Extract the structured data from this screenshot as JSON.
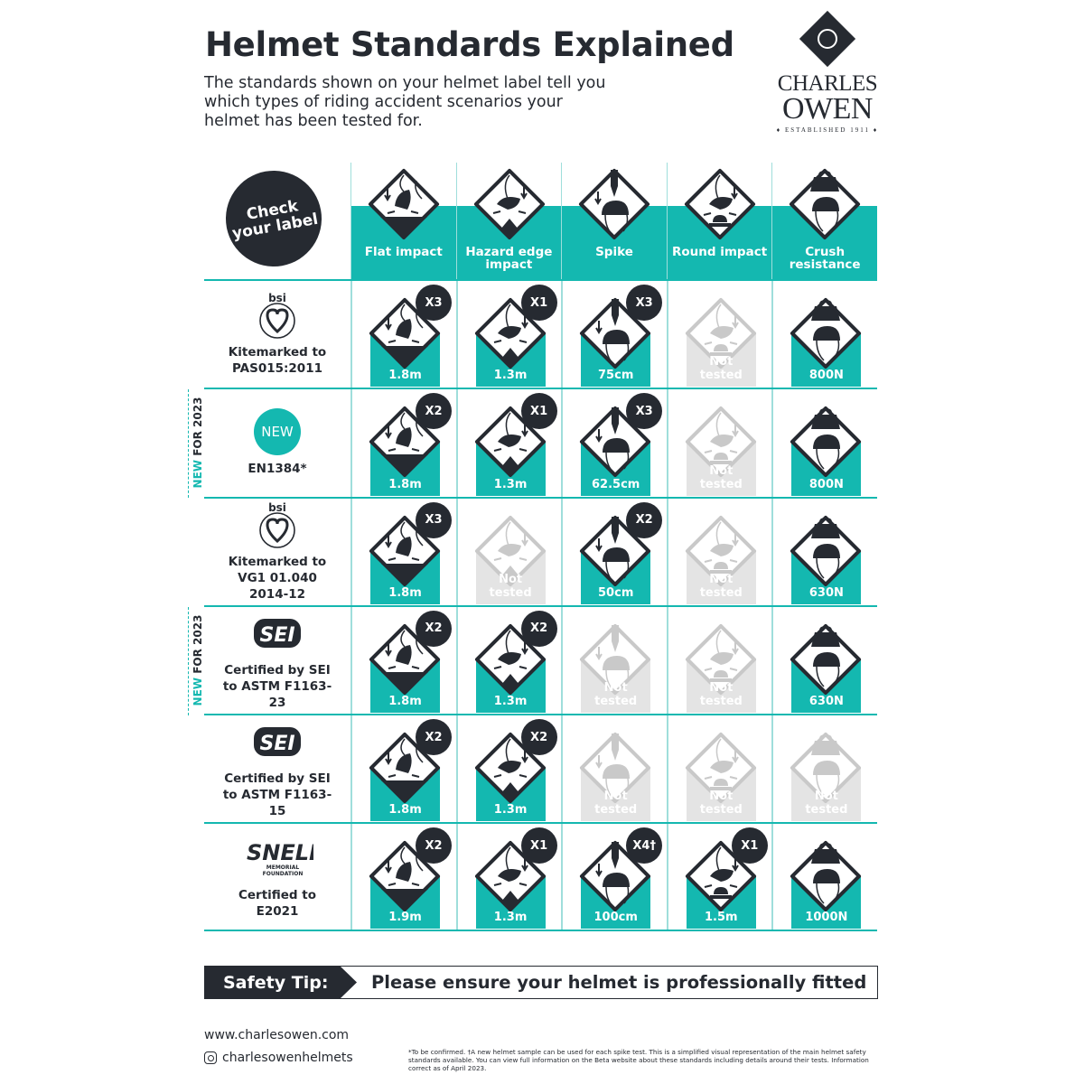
{
  "title": "Helmet Standards Explained",
  "subtitle": "The standards shown on your helmet label tell you which types of riding accident scenarios your helmet has been tested for.",
  "brand": {
    "line1": "CHARLES",
    "line2": "OWEN",
    "established": "♦ ESTABLISHED 1911 ♦"
  },
  "sticker": "Check your label",
  "colors": {
    "teal": "#14b8b0",
    "dark": "#262a31",
    "not_tested": "#e4e4e4"
  },
  "columns": [
    {
      "label": "Flat impact",
      "icon": "flat-impact-icon",
      "type": "flat"
    },
    {
      "label": "Hazard edge impact",
      "icon": "hazard-edge-impact-icon",
      "type": "hazard"
    },
    {
      "label": "Spike",
      "icon": "spike-icon",
      "type": "spike"
    },
    {
      "label": "Round impact",
      "icon": "round-impact-icon",
      "type": "round"
    },
    {
      "label": "Crush resistance",
      "icon": "crush-resistance-icon",
      "type": "crush"
    }
  ],
  "new_label": {
    "new": "NEW",
    "rest": " FOR 2023"
  },
  "rows": [
    {
      "logo": "bsi",
      "logo_text": "bsi",
      "label": "Kitemarked to PAS015:2011",
      "new": false,
      "cells": [
        {
          "value": "1.8m",
          "count": "X3"
        },
        {
          "value": "1.3m",
          "count": "X1"
        },
        {
          "value": "75cm",
          "count": "X3"
        },
        {
          "value": "Not tested",
          "tested": false
        },
        {
          "value": "800N"
        }
      ]
    },
    {
      "logo": "new",
      "logo_text": "NEW",
      "label": "EN1384*",
      "new": true,
      "cells": [
        {
          "value": "1.8m",
          "count": "X2"
        },
        {
          "value": "1.3m",
          "count": "X1"
        },
        {
          "value": "62.5cm",
          "count": "X3"
        },
        {
          "value": "Not tested",
          "tested": false
        },
        {
          "value": "800N"
        }
      ]
    },
    {
      "logo": "bsi",
      "logo_text": "bsi",
      "label": "Kitemarked to VG1 01.040 2014-12",
      "new": false,
      "cells": [
        {
          "value": "1.8m",
          "count": "X3"
        },
        {
          "value": "Not tested",
          "tested": false
        },
        {
          "value": "50cm",
          "count": "X2"
        },
        {
          "value": "Not tested",
          "tested": false
        },
        {
          "value": "630N"
        }
      ]
    },
    {
      "logo": "sei",
      "logo_text": "SEI",
      "label": "Certified by SEI to ASTM F1163-23",
      "new": true,
      "cells": [
        {
          "value": "1.8m",
          "count": "X2"
        },
        {
          "value": "1.3m",
          "count": "X2"
        },
        {
          "value": "Not tested",
          "tested": false
        },
        {
          "value": "Not tested",
          "tested": false
        },
        {
          "value": "630N"
        }
      ]
    },
    {
      "logo": "sei",
      "logo_text": "SEI",
      "label": "Certified by SEI to ASTM F1163-15",
      "new": false,
      "cells": [
        {
          "value": "1.8m",
          "count": "X2"
        },
        {
          "value": "1.3m",
          "count": "X2"
        },
        {
          "value": "Not tested",
          "tested": false
        },
        {
          "value": "Not tested",
          "tested": false
        },
        {
          "value": "Not tested",
          "tested": false
        }
      ]
    },
    {
      "logo": "snell",
      "logo_text": "SNELL MEMORIAL FOUNDATION",
      "label": "Certified to E2021",
      "new": false,
      "cells": [
        {
          "value": "1.9m",
          "count": "X2"
        },
        {
          "value": "1.3m",
          "count": "X1"
        },
        {
          "value": "100cm",
          "count": "X4†"
        },
        {
          "value": "1.5m",
          "count": "X1"
        },
        {
          "value": "1000N"
        }
      ]
    }
  ],
  "safety_tip": {
    "label": "Safety Tip:",
    "text": "Please ensure your helmet is professionally fitted"
  },
  "footer": {
    "website": "www.charlesowen.com",
    "instagram": "charlesowenhelmets",
    "note": "*To be confirmed. †A new helmet sample can be used for each spike test. This is a simplified visual representation of the main helmet safety standards available. You can view full information on the Beta website about these standards including details around their tests. Information correct as of April 2023."
  }
}
